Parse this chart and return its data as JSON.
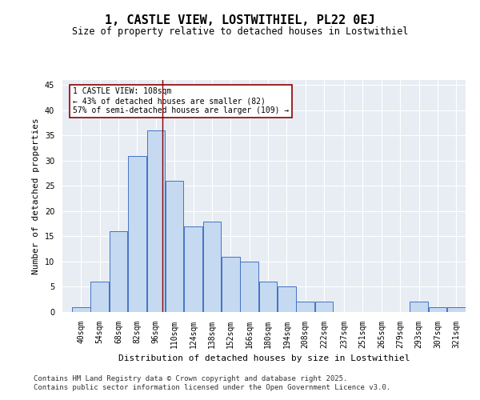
{
  "title": "1, CASTLE VIEW, LOSTWITHIEL, PL22 0EJ",
  "subtitle": "Size of property relative to detached houses in Lostwithiel",
  "xlabel": "Distribution of detached houses by size in Lostwithiel",
  "ylabel": "Number of detached properties",
  "bin_labels": [
    "40sqm",
    "54sqm",
    "68sqm",
    "82sqm",
    "96sqm",
    "110sqm",
    "124sqm",
    "138sqm",
    "152sqm",
    "166sqm",
    "180sqm",
    "194sqm",
    "208sqm",
    "222sqm",
    "237sqm",
    "251sqm",
    "265sqm",
    "279sqm",
    "293sqm",
    "307sqm",
    "321sqm"
  ],
  "bin_edges": [
    40,
    54,
    68,
    82,
    96,
    110,
    124,
    138,
    152,
    166,
    180,
    194,
    208,
    222,
    237,
    251,
    265,
    279,
    293,
    307,
    321
  ],
  "bar_heights": [
    1,
    6,
    16,
    31,
    36,
    26,
    17,
    18,
    11,
    10,
    6,
    5,
    2,
    2,
    0,
    0,
    0,
    0,
    2,
    1,
    1
  ],
  "bar_color": "#c5d9f1",
  "bar_edge_color": "#4472c4",
  "vline_x": 108,
  "vline_color": "#8b0000",
  "annotation_text": "1 CASTLE VIEW: 108sqm\n← 43% of detached houses are smaller (82)\n57% of semi-detached houses are larger (109) →",
  "annotation_box_color": "#ffffff",
  "annotation_box_edge": "#8b0000",
  "ylim": [
    0,
    46
  ],
  "yticks": [
    0,
    5,
    10,
    15,
    20,
    25,
    30,
    35,
    40,
    45
  ],
  "bg_color": "#e8edf4",
  "grid_color": "#ffffff",
  "footer_line1": "Contains HM Land Registry data © Crown copyright and database right 2025.",
  "footer_line2": "Contains public sector information licensed under the Open Government Licence v3.0.",
  "title_fontsize": 11,
  "subtitle_fontsize": 8.5,
  "axis_label_fontsize": 8,
  "tick_fontsize": 7,
  "annotation_fontsize": 7,
  "footer_fontsize": 6.5
}
